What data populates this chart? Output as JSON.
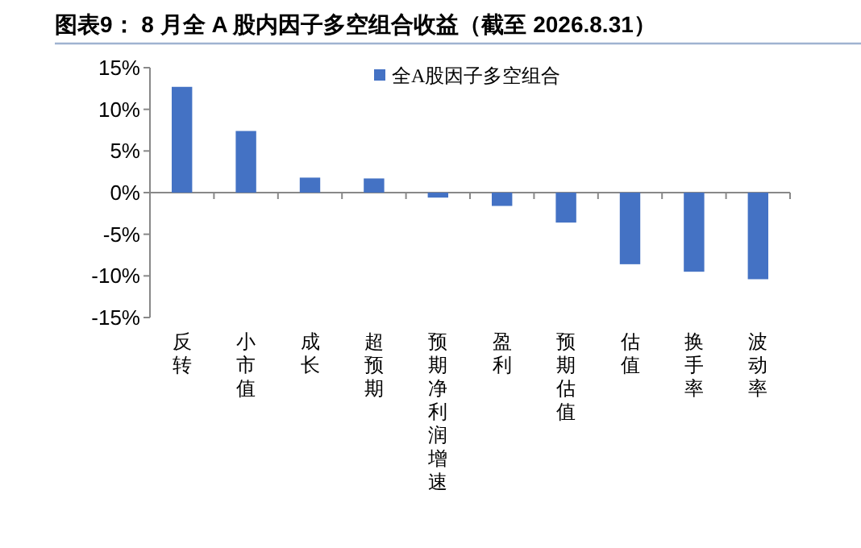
{
  "chart_data": {
    "type": "bar",
    "title": "图表9：  8 月全 A 股内因子多空组合收益（截至 2026.8.31）",
    "categories": [
      "反转",
      "小市值",
      "成长",
      "超预期",
      "预期净利润增速",
      "盈利",
      "预期估值",
      "估值",
      "换手率",
      "波动率"
    ],
    "series": [
      {
        "name": "全A股因子多空组合",
        "color": "#4472c4",
        "values": [
          12.7,
          7.4,
          1.8,
          1.7,
          -0.6,
          -1.6,
          -3.6,
          -8.6,
          -9.5,
          -10.4
        ]
      }
    ],
    "ylim": [
      -15,
      15
    ],
    "yticks": [
      {
        "value": -15,
        "label": "-15%"
      },
      {
        "value": -10,
        "label": "-10%"
      },
      {
        "value": -5,
        "label": "-5%"
      },
      {
        "value": 0,
        "label": "0%"
      },
      {
        "value": 5,
        "label": "5%"
      },
      {
        "value": 10,
        "label": "10%"
      },
      {
        "value": 15,
        "label": "15%"
      }
    ],
    "legend": "top"
  }
}
